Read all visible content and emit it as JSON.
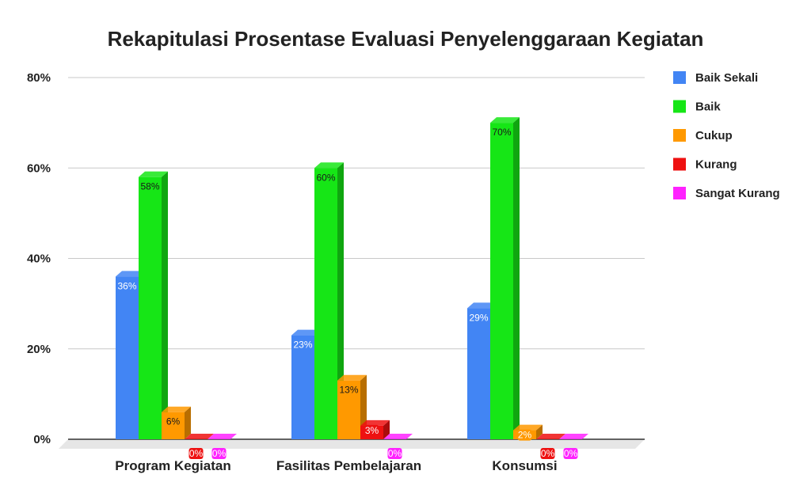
{
  "chart_data": {
    "type": "bar",
    "title": "Rekapitulasi Prosentase Evaluasi Penyelenggaraan Kegiatan",
    "xlabel": "",
    "ylabel": "",
    "categories": [
      "Program Kegiatan",
      "Fasilitas Pembelajaran",
      "Konsumsi"
    ],
    "series": [
      {
        "name": "Baik Sekali",
        "color": "#4285f4",
        "values": [
          36,
          23,
          29
        ],
        "labels": [
          "36%",
          "23%",
          "29%"
        ]
      },
      {
        "name": "Baik",
        "color": "#16e616",
        "values": [
          58,
          60,
          70
        ],
        "labels": [
          "58%",
          "60%",
          "70%"
        ]
      },
      {
        "name": "Cukup",
        "color": "#ff9900",
        "values": [
          6,
          13,
          2
        ],
        "labels": [
          "6%",
          "13%",
          "2%"
        ]
      },
      {
        "name": "Kurang",
        "color": "#ee1111",
        "values": [
          0,
          3,
          0
        ],
        "labels": [
          "0%",
          "3%",
          "0%"
        ]
      },
      {
        "name": "Sangat Kurang",
        "color": "#ff22ff",
        "values": [
          0,
          0,
          0
        ],
        "labels": [
          "0%",
          "0%",
          "0%"
        ]
      }
    ],
    "ylim": [
      0,
      80
    ],
    "yticks": [
      0,
      20,
      40,
      60,
      80
    ],
    "ytick_labels": [
      "0%",
      "20%",
      "40%",
      "60%",
      "80%"
    ],
    "grid": true,
    "legend_position": "right",
    "style": "3d-column"
  }
}
